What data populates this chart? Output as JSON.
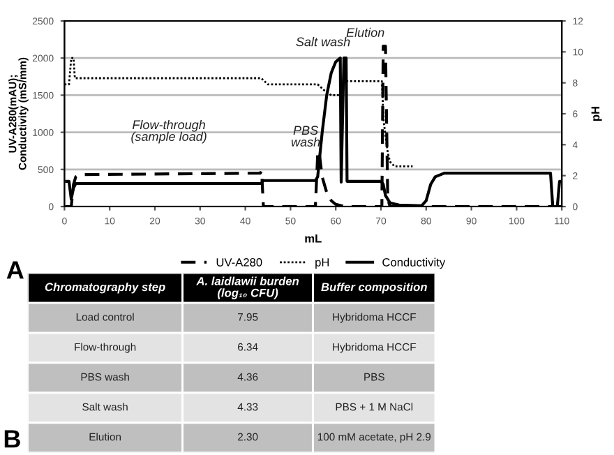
{
  "chart_data": [
    {
      "type": "line",
      "xlabel": "mL",
      "ylabel": "UV-A280(mAU);\nConductivity (mS/mm)",
      "y2label": "pH",
      "xlim": [
        0,
        110
      ],
      "xticks": [
        0,
        10,
        20,
        30,
        40,
        50,
        60,
        70,
        80,
        90,
        100,
        110
      ],
      "ylim": [
        0,
        2500
      ],
      "yticks": [
        0,
        500,
        1000,
        1500,
        2000,
        2500
      ],
      "y2lim": [
        0,
        12
      ],
      "y2ticks": [
        0,
        2,
        4,
        6,
        8,
        10,
        12
      ],
      "grid": "y",
      "legend": "bottom",
      "series": [
        {
          "name": "UV-A280",
          "color": "#000000",
          "line_style": "dashed",
          "x": [
            0,
            1.5,
            2,
            2.5,
            3.5,
            43.3,
            43.6,
            44,
            55.5,
            56,
            56.3,
            57,
            58,
            59,
            60,
            62,
            70.2,
            70.5,
            71,
            71.5,
            72,
            110
          ],
          "values": [
            0,
            0,
            300,
            400,
            430,
            450,
            480,
            0,
            0,
            700,
            750,
            400,
            190,
            80,
            30,
            0,
            0,
            2160,
            2160,
            100,
            0,
            0
          ]
        },
        {
          "name": "pH",
          "color": "#000000",
          "line_style": "dotted",
          "axis": "y2",
          "x": [
            0,
            1,
            1.5,
            2,
            2.3,
            3,
            43.5,
            45,
            56,
            57.5,
            59,
            61,
            62,
            70.2,
            70.6,
            71.5,
            72,
            73,
            77
          ],
          "values": [
            7.9,
            7.9,
            9.6,
            9.6,
            8.3,
            8.3,
            8.3,
            7.9,
            7.9,
            7.5,
            7.2,
            7.2,
            8.1,
            8.1,
            5.5,
            3.5,
            2.9,
            2.6,
            2.6
          ]
        },
        {
          "name": "Conductivity",
          "color": "#000000",
          "line_style": "solid",
          "x": [
            0,
            1,
            1.5,
            2,
            2.5,
            43.5,
            44,
            55.5,
            56,
            56.5,
            57,
            58,
            59,
            60,
            61,
            61.2,
            61.8,
            62.3,
            62.5,
            70,
            70.5,
            71,
            72,
            74,
            79,
            80,
            81,
            82,
            84,
            107.5,
            108,
            109,
            109.5,
            110
          ],
          "values": [
            340,
            340,
            100,
            250,
            310,
            310,
            350,
            350,
            400,
            700,
            1000,
            1500,
            1800,
            1950,
            2000,
            330,
            2000,
            2000,
            340,
            340,
            300,
            150,
            50,
            20,
            10,
            80,
            300,
            400,
            450,
            450,
            0,
            0,
            340,
            340
          ]
        }
      ],
      "annotations": [
        "A",
        "Flow-through\n(sample load)",
        "PBS\nwash",
        "Salt wash",
        "Elution"
      ]
    },
    {
      "type": "other",
      "annotations": [
        "B",
        "Chromatography step",
        "A. laidlawii burden\n(log₁₀ CFU)",
        "Buffer composition",
        "Load control",
        "7.95",
        "Hybridoma HCCF",
        "Flow-through",
        "6.34",
        "Hybridoma HCCF",
        "PBS wash",
        "4.36",
        "PBS",
        "Salt wash",
        "4.33",
        "PBS + 1 M NaCl",
        "Elution",
        "2.30",
        "100 mM acetate, pH 2.9"
      ]
    }
  ]
}
